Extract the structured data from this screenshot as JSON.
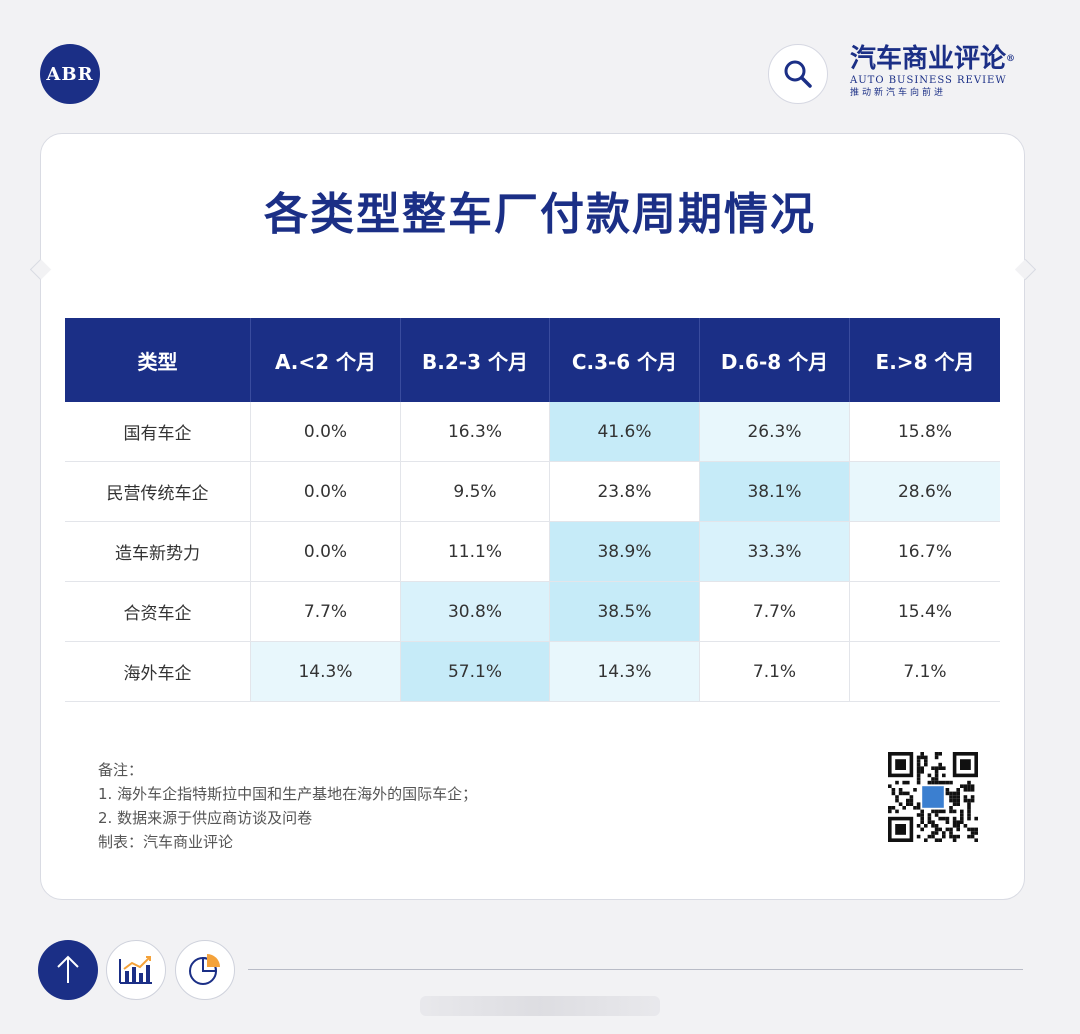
{
  "brand": {
    "badge": "ABR",
    "name_cn": "汽车商业评论",
    "registered": "®",
    "name_en": "AUTO BUSINESS REVIEW",
    "slogan": "推动新汽车向前进"
  },
  "title": "各类型整车厂付款周期情况",
  "colors": {
    "navy": "#1b2f86",
    "heat_high": "#c6ebf8",
    "heat_mid": "#d9f2fb",
    "heat_low": "#e8f7fc"
  },
  "chart_data": {
    "type": "table",
    "columns": [
      "类型",
      "A.<2 个月",
      "B.2-3 个月",
      "C.3-6 个月",
      "D.6-8 个月",
      "E.>8 个月"
    ],
    "rows": [
      {
        "label": "国有车企",
        "values": [
          "0.0%",
          "16.3%",
          "41.6%",
          "26.3%",
          "15.8%"
        ]
      },
      {
        "label": "民营传统车企",
        "values": [
          "0.0%",
          "9.5%",
          "23.8%",
          "38.1%",
          "28.6%"
        ]
      },
      {
        "label": "造车新势力",
        "values": [
          "0.0%",
          "11.1%",
          "38.9%",
          "33.3%",
          "16.7%"
        ]
      },
      {
        "label": "合资车企",
        "values": [
          "7.7%",
          "30.8%",
          "38.5%",
          "7.7%",
          "15.4%"
        ]
      },
      {
        "label": "海外车企",
        "values": [
          "14.3%",
          "57.1%",
          "14.3%",
          "7.1%",
          "7.1%"
        ]
      }
    ]
  },
  "notes": {
    "heading": "备注：",
    "items": [
      "1. 海外车企指特斯拉中国和生产基地在海外的国际车企；",
      "2. 数据来源于供应商访谈及问卷"
    ],
    "credit": "制表：汽车商业评论"
  }
}
